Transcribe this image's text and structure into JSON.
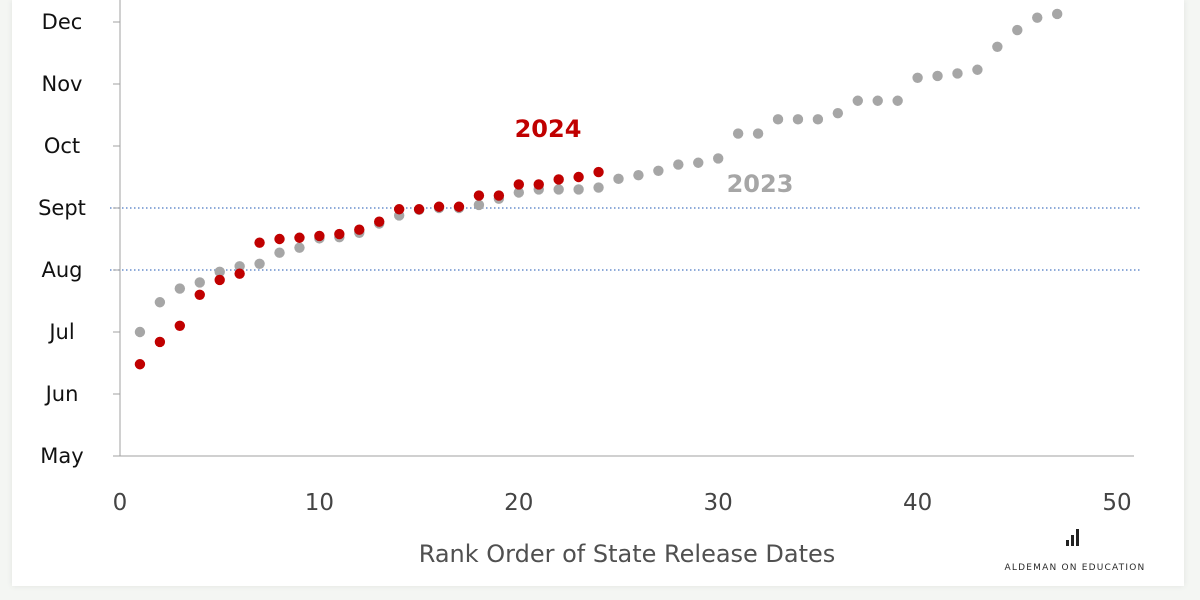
{
  "chart_data": {
    "type": "scatter",
    "xlabel": "Rank Order of State Release Dates",
    "ylabel": "",
    "xlim": [
      0,
      50
    ],
    "x_ticks": [
      "0",
      "10",
      "20",
      "30",
      "40",
      "50"
    ],
    "y_ticks": [
      "May",
      "Jun",
      "Jul",
      "Aug",
      "Sept",
      "Oct",
      "Nov",
      "Dec"
    ],
    "y_tick_values": [
      0,
      1,
      2,
      3,
      4,
      5,
      6,
      7
    ],
    "ylim": [
      0,
      7
    ],
    "grid": false,
    "reference_lines": [
      3,
      4
    ],
    "series": [
      {
        "name": "2023",
        "color": "#a6a6a6",
        "x": [
          1,
          2,
          3,
          4,
          5,
          6,
          7,
          8,
          9,
          10,
          11,
          12,
          13,
          14,
          15,
          16,
          17,
          18,
          19,
          20,
          21,
          22,
          23,
          24,
          25,
          26,
          27,
          28,
          29,
          30,
          31,
          32,
          33,
          34,
          35,
          36,
          37,
          38,
          39,
          40,
          41,
          42,
          43,
          44,
          45,
          46,
          47
        ],
        "y": [
          2.0,
          2.48,
          2.7,
          2.8,
          2.97,
          3.06,
          3.1,
          3.28,
          3.36,
          3.51,
          3.53,
          3.6,
          3.75,
          3.88,
          3.97,
          4.0,
          4.0,
          4.05,
          4.15,
          4.25,
          4.3,
          4.3,
          4.3,
          4.33,
          4.47,
          4.53,
          4.6,
          4.7,
          4.73,
          4.8,
          5.2,
          5.2,
          5.43,
          5.43,
          5.43,
          5.53,
          5.73,
          5.73,
          5.73,
          6.1,
          6.13,
          6.17,
          6.23,
          6.6,
          6.87,
          7.07,
          7.13
        ]
      },
      {
        "name": "2024",
        "color": "#c00000",
        "x": [
          1,
          2,
          3,
          4,
          5,
          6,
          7,
          8,
          9,
          10,
          11,
          12,
          13,
          14,
          15,
          16,
          17,
          18,
          19,
          20,
          21,
          22,
          23,
          24
        ],
        "y": [
          1.48,
          1.84,
          2.1,
          2.6,
          2.84,
          2.94,
          3.44,
          3.5,
          3.52,
          3.55,
          3.58,
          3.65,
          3.78,
          3.98,
          3.98,
          4.02,
          4.02,
          4.2,
          4.2,
          4.38,
          4.38,
          4.46,
          4.5,
          4.58
        ]
      }
    ]
  },
  "annotations": {
    "label_2024": "2024",
    "label_2023": "2023"
  },
  "branding": {
    "text": "ALDEMAN ON EDUCATION",
    "icon": "bar-chart-icon"
  }
}
